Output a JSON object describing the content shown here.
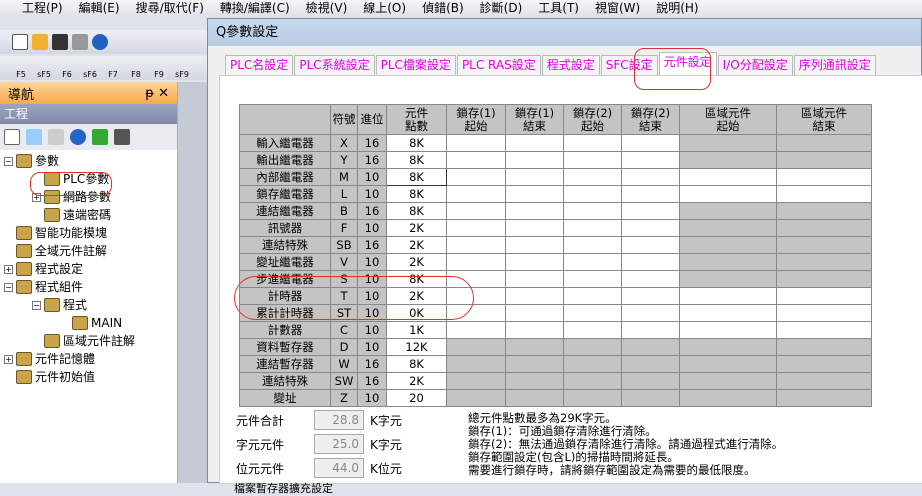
{
  "menu": [
    "工程(P)",
    "編輯(E)",
    "搜尋/取代(F)",
    "轉換/編譯(C)",
    "檢視(V)",
    "線上(O)",
    "偵錯(B)",
    "診斷(D)",
    "工具(T)",
    "視窗(W)",
    "說明(H)"
  ],
  "ladder_keys": [
    "F5",
    "sF5",
    "F6",
    "sF6",
    "F7",
    "F8",
    "F9",
    "sF9"
  ],
  "nav": {
    "title": "導航",
    "pin": "ᵽ",
    "close": "✕",
    "project": "工程",
    "tree": [
      {
        "label": "參數",
        "lvl": 0,
        "pm": "−"
      },
      {
        "label": "PLC參數",
        "lvl": 1,
        "pm": ""
      },
      {
        "label": "網路參數",
        "lvl": 1,
        "pm": "+"
      },
      {
        "label": "遠端密碼",
        "lvl": 1,
        "pm": ""
      },
      {
        "label": "智能功能模塊",
        "lvl": 0,
        "pm": ""
      },
      {
        "label": "全域元件註解",
        "lvl": 0,
        "pm": ""
      },
      {
        "label": "程式設定",
        "lvl": 0,
        "pm": "+"
      },
      {
        "label": "程式組件",
        "lvl": 0,
        "pm": "−"
      },
      {
        "label": "程式",
        "lvl": 1,
        "pm": "−"
      },
      {
        "label": "MAIN",
        "lvl": 2,
        "pm": ""
      },
      {
        "label": "區域元件註解",
        "lvl": 1,
        "pm": ""
      },
      {
        "label": "元件記憶體",
        "lvl": 0,
        "pm": "+"
      },
      {
        "label": "元件初始值",
        "lvl": 0,
        "pm": ""
      }
    ]
  },
  "dialog": {
    "title": "Q參數設定",
    "tabs": [
      "PLC名設定",
      "PLC系統設定",
      "PLC檔案設定",
      "PLC RAS設定",
      "程式設定",
      "SFC設定",
      "元件設定",
      "I/O分配設定",
      "序列通訊設定"
    ],
    "active_tab": "元件設定",
    "headers": [
      "",
      "符號",
      "進位",
      "元件\n點數",
      "鎖存(1)\n起始",
      "鎖存(1)\n結束",
      "鎖存(2)\n起始",
      "鎖存(2)\n結束",
      "區域元件\n起始",
      "區域元件\n結束"
    ],
    "rows": [
      [
        "輸入繼電器",
        "X",
        "16",
        "8K"
      ],
      [
        "輸出繼電器",
        "Y",
        "16",
        "8K"
      ],
      [
        "內部繼電器",
        "M",
        "10",
        "8K"
      ],
      [
        "鎖存繼電器",
        "L",
        "10",
        "8K"
      ],
      [
        "連結繼電器",
        "B",
        "16",
        "8K"
      ],
      [
        "訊號器",
        "F",
        "10",
        "2K"
      ],
      [
        "連結特殊",
        "SB",
        "16",
        "2K"
      ],
      [
        "變址繼電器",
        "V",
        "10",
        "2K"
      ],
      [
        "步進繼電器",
        "S",
        "10",
        "8K"
      ],
      [
        "計時器",
        "T",
        "10",
        "2K"
      ],
      [
        "累計計時器",
        "ST",
        "10",
        "0K"
      ],
      [
        "計數器",
        "C",
        "10",
        "1K"
      ],
      [
        "資料暫存器",
        "D",
        "10",
        "12K"
      ],
      [
        "連結暫存器",
        "W",
        "16",
        "8K"
      ],
      [
        "連結特殊",
        "SW",
        "16",
        "2K"
      ],
      [
        "變址",
        "Z",
        "10",
        "20"
      ]
    ],
    "summary": [
      {
        "label": "元件合計",
        "value": "28.8",
        "unit": "K字元"
      },
      {
        "label": "字元元件",
        "value": "25.0",
        "unit": "K字元"
      },
      {
        "label": "位元元件",
        "value": "44.0",
        "unit": "K位元"
      }
    ],
    "notes": [
      "總元件點數最多為29K字元。",
      "鎖存(1)：可通過鎖存清除進行清除。",
      "鎖存(2)：無法通過鎖存清除進行清除。請通過程式進行清除。",
      "鎖存範圍設定(包含L)的掃描時間將延長。",
      "需要進行鎖存時，請將鎖存範圍設定為需要的最低限度。"
    ],
    "bottom_cut": "檔案暫存器擴充設定"
  }
}
